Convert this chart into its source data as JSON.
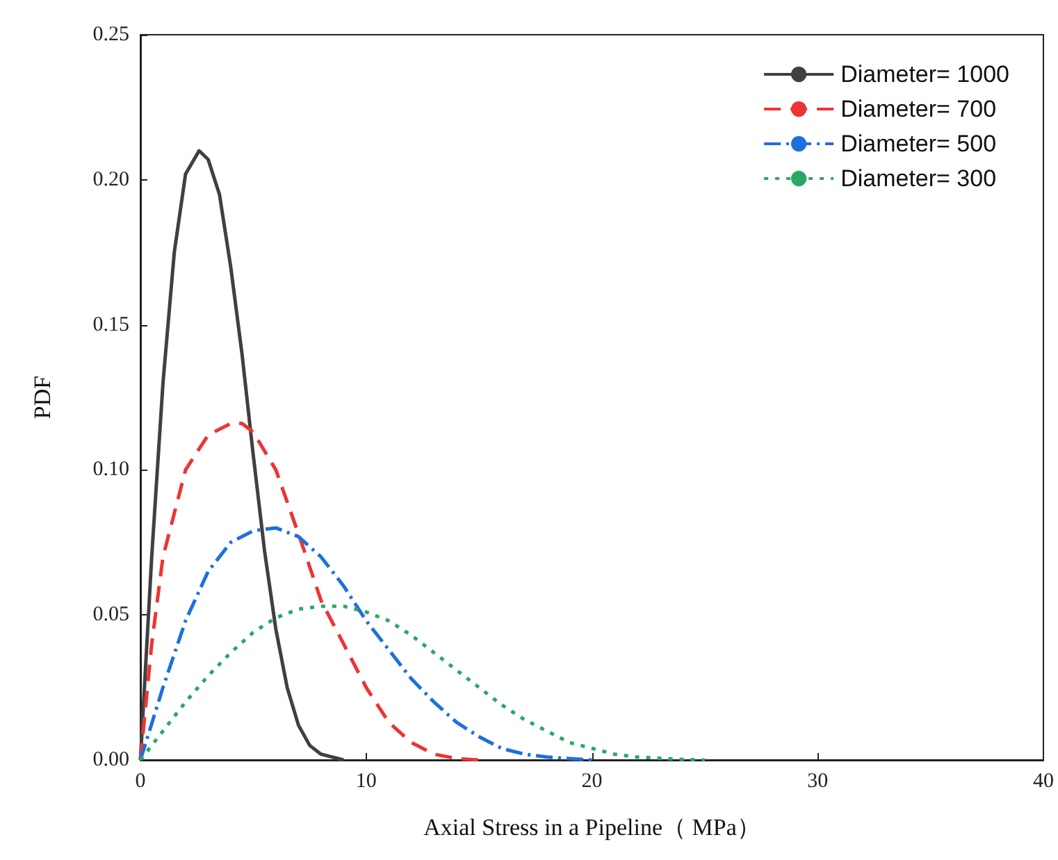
{
  "chart_data": {
    "type": "line",
    "xlabel": "Axial Stress in a Pipeline（ MPa）",
    "ylabel": "PDF",
    "xlim": [
      0,
      40
    ],
    "xticks": [
      0,
      10,
      20,
      30,
      40
    ],
    "ylim": [
      0,
      0.25
    ],
    "yticks": [
      {
        "value": 0,
        "label": "0.00"
      },
      {
        "value": 0.05,
        "label": "0.05"
      },
      {
        "value": 0.1,
        "label": "0.10"
      },
      {
        "value": 0.15,
        "label": "0.15"
      },
      {
        "value": 0.2,
        "label": "0.20"
      },
      {
        "value": 0.25,
        "label": "0.25"
      }
    ],
    "grid": false,
    "legend": "top right",
    "marker": "none",
    "series": [
      {
        "name": "Diameter= 1000",
        "color": "#404040",
        "line_style": "solid",
        "x": [
          0,
          0.5,
          1,
          1.5,
          2,
          2.6,
          3,
          3.5,
          4,
          4.5,
          5,
          5.5,
          6,
          6.5,
          7,
          7.5,
          8,
          9
        ],
        "values": [
          0,
          0.07,
          0.13,
          0.175,
          0.202,
          0.21,
          0.207,
          0.195,
          0.17,
          0.14,
          0.105,
          0.072,
          0.045,
          0.025,
          0.012,
          0.005,
          0.002,
          0
        ]
      },
      {
        "name": "Diameter= 700",
        "color": "#ee3333",
        "line_style": "dashed",
        "x": [
          0,
          0.5,
          1,
          2,
          3,
          4,
          4.5,
          5,
          6,
          7,
          8,
          9,
          10,
          11,
          12,
          13,
          14,
          15
        ],
        "values": [
          0,
          0.04,
          0.07,
          0.1,
          0.112,
          0.116,
          0.116,
          0.113,
          0.1,
          0.078,
          0.055,
          0.04,
          0.025,
          0.013,
          0.006,
          0.002,
          0.0005,
          0
        ]
      },
      {
        "name": "Diameter= 500",
        "color": "#1e6fdc",
        "line_style": "dashdot",
        "x": [
          0,
          1,
          2,
          3,
          4,
          5,
          6,
          7,
          8,
          9,
          10,
          11,
          12,
          13,
          14,
          15,
          16,
          17,
          18,
          20
        ],
        "values": [
          0,
          0.025,
          0.048,
          0.065,
          0.075,
          0.079,
          0.08,
          0.077,
          0.07,
          0.06,
          0.048,
          0.038,
          0.028,
          0.02,
          0.013,
          0.008,
          0.004,
          0.002,
          0.001,
          0
        ]
      },
      {
        "name": "Diameter= 300",
        "color": "#2aa866",
        "line_style": "dotted",
        "x": [
          0,
          1,
          2,
          3,
          4,
          5,
          6,
          7,
          8,
          9,
          10,
          11,
          12,
          13,
          14,
          15,
          16,
          17,
          18,
          19,
          20,
          21,
          22,
          24,
          25
        ],
        "values": [
          0,
          0.01,
          0.02,
          0.029,
          0.037,
          0.044,
          0.049,
          0.052,
          0.053,
          0.053,
          0.051,
          0.048,
          0.043,
          0.037,
          0.031,
          0.025,
          0.019,
          0.014,
          0.01,
          0.006,
          0.004,
          0.002,
          0.001,
          0.0002,
          0
        ]
      }
    ]
  }
}
